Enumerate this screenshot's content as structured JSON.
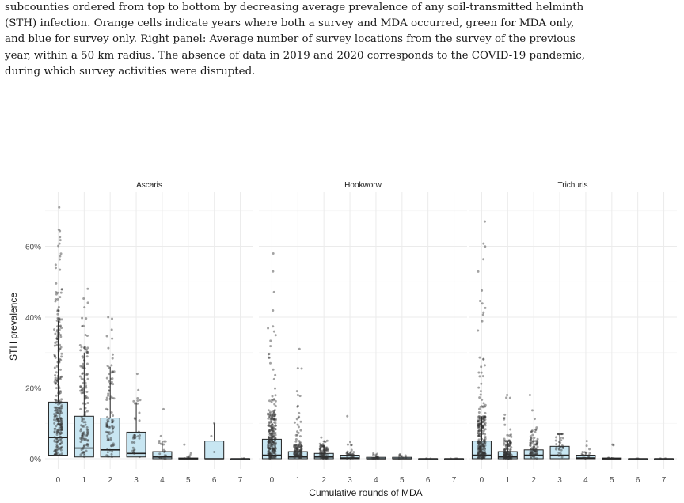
{
  "caption": {
    "lines": [
      "subcounties ordered from top to bottom by decreasing average prevalence of any soil-transmitted helminth",
      "(STH) infection. Orange cells indicate years where both a survey and MDA occurred, green for MDA only,",
      "and blue for survey only. Right panel: Average number of survey locations from the survey of the previous",
      "year, within a 50 km radius. The absence of data in 2019 and 2020 corresponds to the COVID-19 pandemic,",
      "during which survey activities were disrupted."
    ]
  },
  "colors": {
    "box_fill": "#c8e6f2",
    "box_stroke": "#222222",
    "point": "#333333",
    "grid": "#ebebeb",
    "text": "#333333"
  },
  "chart_data": {
    "type": "box",
    "ylabel": "STH prevalence",
    "xlabel": "Cumulative rounds of MDA",
    "ylim": [
      0,
      0.72
    ],
    "yticks": [
      0,
      0.2,
      0.4,
      0.6
    ],
    "ytick_labels": [
      "0%",
      "20%",
      "40%",
      "60%"
    ],
    "categories": [
      "0",
      "1",
      "2",
      "3",
      "4",
      "5",
      "6",
      "7"
    ],
    "grid": true,
    "panels": [
      {
        "name": "Ascaris",
        "boxes": [
          {
            "x": "0",
            "q1": 0.01,
            "median": 0.06,
            "q3": 0.16,
            "whisker_low": 0,
            "whisker_high": 0.39,
            "max": 0.71
          },
          {
            "x": "1",
            "q1": 0.005,
            "median": 0.03,
            "q3": 0.12,
            "whisker_low": 0,
            "whisker_high": 0.3,
            "max": 0.48
          },
          {
            "x": "2",
            "q1": 0.005,
            "median": 0.025,
            "q3": 0.115,
            "whisker_low": 0,
            "whisker_high": 0.26,
            "max": 0.4
          },
          {
            "x": "3",
            "q1": 0.005,
            "median": 0.015,
            "q3": 0.075,
            "whisker_low": 0,
            "whisker_high": 0.16,
            "max": 0.24
          },
          {
            "x": "4",
            "q1": 0.0,
            "median": 0.005,
            "q3": 0.02,
            "whisker_low": 0,
            "whisker_high": 0.05,
            "max": 0.14
          },
          {
            "x": "5",
            "q1": 0.0,
            "median": 0.0,
            "q3": 0.002,
            "whisker_low": 0,
            "whisker_high": 0.005,
            "max": 0.04
          },
          {
            "x": "6",
            "q1": 0.0,
            "median": 0.0,
            "q3": 0.05,
            "whisker_low": 0,
            "whisker_high": 0.1,
            "max": 0.1
          },
          {
            "x": "7",
            "q1": 0.0,
            "median": 0.0,
            "q3": 0.0,
            "whisker_low": 0,
            "whisker_high": 0.0,
            "max": 0.0
          }
        ]
      },
      {
        "name": "Hookworw",
        "boxes": [
          {
            "x": "0",
            "q1": 0.0,
            "median": 0.01,
            "q3": 0.055,
            "whisker_low": 0,
            "whisker_high": 0.13,
            "max": 0.58
          },
          {
            "x": "1",
            "q1": 0.0,
            "median": 0.005,
            "q3": 0.02,
            "whisker_low": 0,
            "whisker_high": 0.04,
            "max": 0.31
          },
          {
            "x": "2",
            "q1": 0.0,
            "median": 0.005,
            "q3": 0.015,
            "whisker_low": 0,
            "whisker_high": 0.035,
            "max": 0.06
          },
          {
            "x": "3",
            "q1": 0.0,
            "median": 0.002,
            "q3": 0.01,
            "whisker_low": 0,
            "whisker_high": 0.02,
            "max": 0.12
          },
          {
            "x": "4",
            "q1": 0.0,
            "median": 0.0,
            "q3": 0.004,
            "whisker_low": 0,
            "whisker_high": 0.01,
            "max": 0.015
          },
          {
            "x": "5",
            "q1": 0.0,
            "median": 0.0,
            "q3": 0.004,
            "whisker_low": 0,
            "whisker_high": 0.01,
            "max": 0.012
          },
          {
            "x": "6",
            "q1": 0.0,
            "median": 0.0,
            "q3": 0.0,
            "whisker_low": 0,
            "whisker_high": 0.0,
            "max": 0.0
          },
          {
            "x": "7",
            "q1": 0.0,
            "median": 0.0,
            "q3": 0.0,
            "whisker_low": 0,
            "whisker_high": 0.0,
            "max": 0.0
          }
        ]
      },
      {
        "name": "Trichuris",
        "boxes": [
          {
            "x": "0",
            "q1": 0.0,
            "median": 0.01,
            "q3": 0.05,
            "whisker_low": 0,
            "whisker_high": 0.12,
            "max": 0.67
          },
          {
            "x": "1",
            "q1": 0.0,
            "median": 0.005,
            "q3": 0.02,
            "whisker_low": 0,
            "whisker_high": 0.05,
            "max": 0.18
          },
          {
            "x": "2",
            "q1": 0.0,
            "median": 0.01,
            "q3": 0.025,
            "whisker_low": 0,
            "whisker_high": 0.06,
            "max": 0.18
          },
          {
            "x": "3",
            "q1": 0.0,
            "median": 0.01,
            "q3": 0.035,
            "whisker_low": 0,
            "whisker_high": 0.07,
            "max": 0.07
          },
          {
            "x": "4",
            "q1": 0.0,
            "median": 0.002,
            "q3": 0.01,
            "whisker_low": 0,
            "whisker_high": 0.02,
            "max": 0.05
          },
          {
            "x": "5",
            "q1": 0.0,
            "median": 0.0,
            "q3": 0.002,
            "whisker_low": 0,
            "whisker_high": 0.004,
            "max": 0.04
          },
          {
            "x": "6",
            "q1": 0.0,
            "median": 0.0,
            "q3": 0.0,
            "whisker_low": 0,
            "whisker_high": 0.0,
            "max": 0.0
          },
          {
            "x": "7",
            "q1": 0.0,
            "median": 0.0,
            "q3": 0.0,
            "whisker_low": 0,
            "whisker_high": 0.0,
            "max": 0.0
          }
        ]
      }
    ]
  }
}
